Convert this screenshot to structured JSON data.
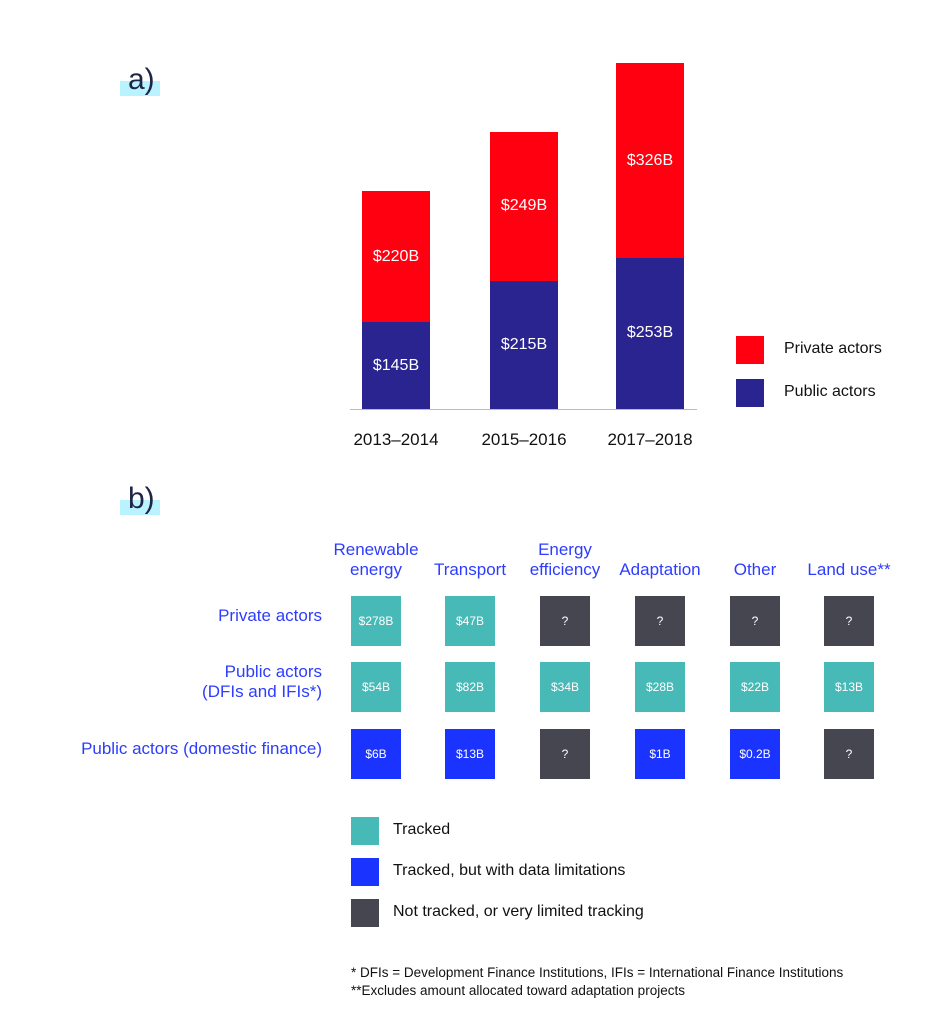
{
  "colors": {
    "private": "#ff0010",
    "public": "#2a2490",
    "tracked": "#47b9b6",
    "limited": "#1a33ff",
    "not_tracked": "#454650",
    "header_text": "#2d3cff"
  },
  "chart_data": [
    {
      "type": "bar",
      "stacked": true,
      "panel_label": "a)",
      "categories": [
        "2013–2014",
        "2015–2016",
        "2017–2018"
      ],
      "series": [
        {
          "name": "Public actors",
          "values": [
            145,
            215,
            253
          ],
          "labels": [
            "$145B",
            "$215B",
            "$253B"
          ],
          "color": "#2a2490"
        },
        {
          "name": "Private actors",
          "values": [
            220,
            249,
            326
          ],
          "labels": [
            "$220B",
            "$249B",
            "$326B"
          ],
          "color": "#ff0010"
        }
      ],
      "unit": "$B",
      "legend": [
        {
          "name": "Private actors",
          "color": "#ff0010"
        },
        {
          "name": "Public actors",
          "color": "#2a2490"
        }
      ],
      "legend_placement": "right",
      "grid": false
    },
    {
      "type": "heatmap",
      "panel_label": "b)",
      "columns": [
        "Renewable energy",
        "Transport",
        "Energy efficiency",
        "Adaptation",
        "Other",
        "Land use**"
      ],
      "columns_display": [
        [
          "Renewable",
          "energy"
        ],
        [
          "Transport"
        ],
        [
          "Energy",
          "efficiency"
        ],
        [
          "Adaptation"
        ],
        [
          "Other"
        ],
        [
          "Land use**"
        ]
      ],
      "rows": [
        {
          "label": [
            "Private actors"
          ],
          "cells": [
            {
              "v": "$278B",
              "s": "tracked"
            },
            {
              "v": "$47B",
              "s": "tracked"
            },
            {
              "v": "?",
              "s": "not_tracked"
            },
            {
              "v": "?",
              "s": "not_tracked"
            },
            {
              "v": "?",
              "s": "not_tracked"
            },
            {
              "v": "?",
              "s": "not_tracked"
            }
          ]
        },
        {
          "label": [
            "Public actors",
            "(DFIs and IFIs*)"
          ],
          "cells": [
            {
              "v": "$54B",
              "s": "tracked"
            },
            {
              "v": "$82B",
              "s": "tracked"
            },
            {
              "v": "$34B",
              "s": "tracked"
            },
            {
              "v": "$28B",
              "s": "tracked"
            },
            {
              "v": "$22B",
              "s": "tracked"
            },
            {
              "v": "$13B",
              "s": "tracked"
            }
          ]
        },
        {
          "label": [
            "Public actors (domestic finance)"
          ],
          "cells": [
            {
              "v": "$6B",
              "s": "limited"
            },
            {
              "v": "$13B",
              "s": "limited"
            },
            {
              "v": "?",
              "s": "not_tracked"
            },
            {
              "v": "$1B",
              "s": "limited"
            },
            {
              "v": "$0.2B",
              "s": "limited"
            },
            {
              "v": "?",
              "s": "not_tracked"
            }
          ]
        }
      ],
      "legend": [
        {
          "name": "Tracked",
          "status": "tracked"
        },
        {
          "name": "Tracked, but with data limitations",
          "status": "limited"
        },
        {
          "name": "Not tracked, or very limited tracking",
          "status": "not_tracked"
        }
      ],
      "footnotes": [
        "* DFIs = Development Finance Institutions, IFIs = International Finance Institutions",
        "**Excludes amount allocated toward adaptation projects"
      ]
    }
  ]
}
